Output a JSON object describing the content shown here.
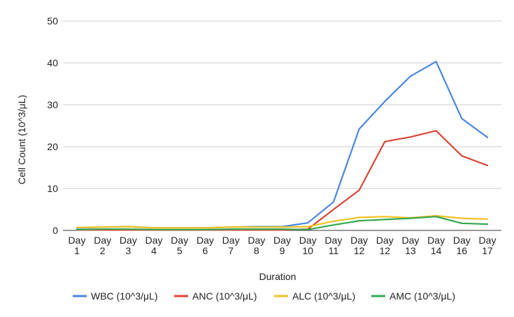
{
  "chart_data": {
    "type": "line",
    "title": "",
    "xlabel": "Duration",
    "ylabel": "Cell Count (10^3/μL)",
    "ylim": [
      0,
      50
    ],
    "yticks": [
      0,
      10,
      20,
      30,
      40,
      50
    ],
    "grid": true,
    "legend_position": "bottom",
    "categories": [
      "Day 1",
      "Day 2",
      "Day 3",
      "Day 4",
      "Day 5",
      "Day 6",
      "Day 7",
      "Day 8",
      "Day 9",
      "Day 10",
      "Day 11",
      "Day 12",
      "Day 12",
      "Day 13",
      "Day 14",
      "Day 16",
      "Day 17"
    ],
    "series": [
      {
        "name": "WBC (10^3/μL)",
        "color": "#4a86e0",
        "values": [
          0.6,
          0.8,
          0.9,
          0.6,
          0.6,
          0.6,
          0.8,
          0.9,
          0.9,
          1.8,
          6.8,
          24.2,
          30.8,
          36.8,
          40.3,
          26.7,
          22.2
        ]
      },
      {
        "name": "ANC (10^3/μL)",
        "color": "#dc4536",
        "values": [
          0.1,
          0.1,
          0.1,
          0.1,
          0.1,
          0.1,
          0.1,
          0.1,
          0.1,
          0.3,
          5.0,
          9.6,
          21.2,
          22.3,
          23.8,
          17.8,
          15.5
        ]
      },
      {
        "name": "ALC (10^3/μL)",
        "color": "#f4c022",
        "values": [
          0.7,
          0.8,
          0.9,
          0.6,
          0.6,
          0.6,
          0.8,
          0.8,
          0.8,
          0.9,
          2.2,
          3.1,
          3.3,
          3.0,
          3.5,
          2.9,
          2.7
        ]
      },
      {
        "name": "AMC (10^3/μL)",
        "color": "#34a853",
        "values": [
          0.2,
          0.3,
          0.3,
          0.2,
          0.2,
          0.2,
          0.3,
          0.3,
          0.3,
          0.2,
          1.3,
          2.3,
          2.6,
          2.9,
          3.3,
          1.7,
          1.5
        ]
      }
    ]
  }
}
